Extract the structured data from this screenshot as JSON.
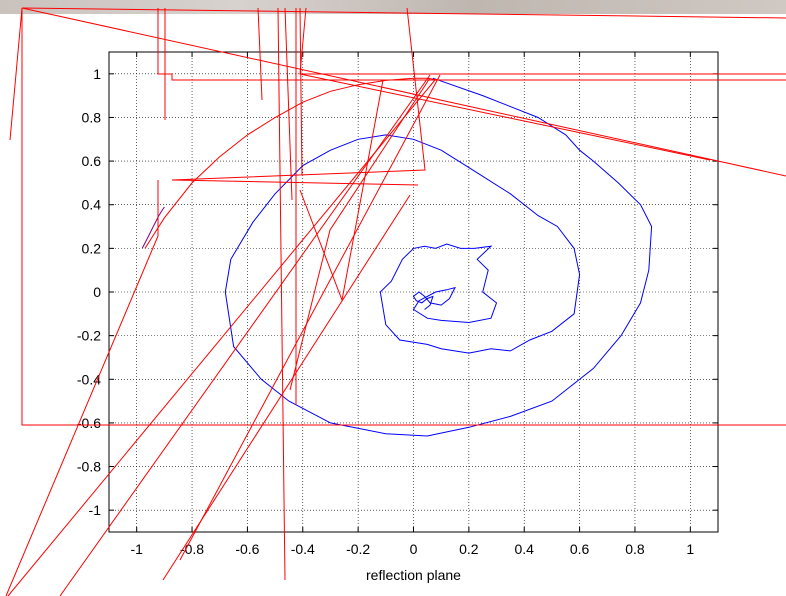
{
  "chart_data": {
    "type": "line",
    "title": "",
    "xlabel": "reflection plane",
    "ylabel": "",
    "xlim": [
      -1.1,
      1.1
    ],
    "ylim": [
      -1.1,
      1.1
    ],
    "grid": true,
    "x_ticks": [
      -1,
      -0.8,
      -0.6,
      -0.4,
      -0.2,
      0,
      0.2,
      0.4,
      0.6,
      0.8,
      1
    ],
    "y_ticks": [
      1,
      0.8,
      0.6,
      0.4,
      0.2,
      0,
      -0.2,
      -0.4,
      -0.6,
      -0.8,
      -1
    ],
    "x_tick_labels": [
      "-1",
      "-0.8",
      "-0.6",
      "-0.4",
      "-0.2",
      "0",
      "0.2",
      "0.4",
      "0.6",
      "0.8",
      "1"
    ],
    "y_tick_labels": [
      "1",
      "0.8",
      "0.6",
      "0.4",
      "0.2",
      "0",
      "-0.2",
      "-0.4",
      "-0.6",
      "-0.8",
      "-1"
    ],
    "series": [
      {
        "color": "#0000ff",
        "x": [
          0.07,
          0.25,
          0.45,
          0.55,
          0.6,
          0.65,
          0.74,
          0.82,
          0.86,
          0.85,
          0.82,
          0.75,
          0.65,
          0.5,
          0.35,
          0.2,
          0.05,
          -0.1,
          -0.3,
          -0.45,
          -0.55,
          -0.65,
          -0.68,
          -0.66,
          -0.58,
          -0.5,
          -0.4,
          -0.3,
          -0.2,
          -0.1,
          0.0,
          0.1,
          0.2,
          0.35,
          0.45,
          0.52,
          0.58,
          0.6,
          0.58,
          0.5,
          0.42,
          0.35,
          0.28,
          0.2,
          0.1,
          0.05,
          -0.05,
          -0.1,
          -0.12,
          -0.08,
          -0.04,
          0.0,
          0.04,
          0.08,
          0.12,
          0.17,
          0.22,
          0.28,
          0.23,
          0.27,
          0.25,
          0.3,
          0.28,
          0.2,
          0.1,
          0.05,
          0.0,
          0.02,
          0.05,
          0.08,
          0.12,
          0.15,
          0.13,
          0.1,
          0.06,
          0.04,
          0.02,
          0.0,
          0.01,
          0.03,
          0.05,
          0.07,
          0.06,
          0.04
        ],
        "y": [
          0.98,
          0.9,
          0.8,
          0.72,
          0.65,
          0.6,
          0.5,
          0.4,
          0.3,
          0.1,
          -0.05,
          -0.2,
          -0.35,
          -0.5,
          -0.57,
          -0.62,
          -0.66,
          -0.65,
          -0.6,
          -0.5,
          -0.4,
          -0.25,
          0.0,
          0.15,
          0.32,
          0.45,
          0.58,
          0.65,
          0.7,
          0.72,
          0.7,
          0.65,
          0.57,
          0.45,
          0.35,
          0.3,
          0.2,
          0.08,
          -0.1,
          -0.18,
          -0.22,
          -0.27,
          -0.26,
          -0.28,
          -0.26,
          -0.24,
          -0.22,
          -0.15,
          0.0,
          0.05,
          0.15,
          0.2,
          0.21,
          0.2,
          0.22,
          0.2,
          0.2,
          0.21,
          0.15,
          0.1,
          0.0,
          -0.05,
          -0.12,
          -0.14,
          -0.13,
          -0.12,
          -0.08,
          -0.04,
          -0.02,
          0.0,
          0.01,
          0.02,
          -0.03,
          -0.06,
          -0.05,
          -0.02,
          0.0,
          -0.02,
          -0.04,
          -0.05,
          -0.03,
          -0.02,
          -0.06,
          -0.08
        ]
      },
      {
        "color": "#ff0000",
        "x": [
          -0.97,
          -0.9,
          -0.8,
          -0.7,
          -0.6,
          -0.5,
          -0.4,
          -0.3,
          -0.2,
          -0.1,
          0.0,
          0.05,
          0.1
        ],
        "y": [
          0.2,
          0.34,
          0.5,
          0.62,
          0.72,
          0.8,
          0.87,
          0.92,
          0.95,
          0.97,
          0.98,
          0.98,
          0.97
        ]
      },
      {
        "color": "#800080",
        "x": [
          -0.98,
          -0.96,
          -0.94,
          -0.92,
          -0.9
        ],
        "y": [
          0.2,
          0.25,
          0.3,
          0.35,
          0.39
        ]
      }
    ]
  },
  "overlay": {
    "stroke_color": "#ff0000",
    "grid_color": "#000000",
    "axis_color": "#000000"
  }
}
